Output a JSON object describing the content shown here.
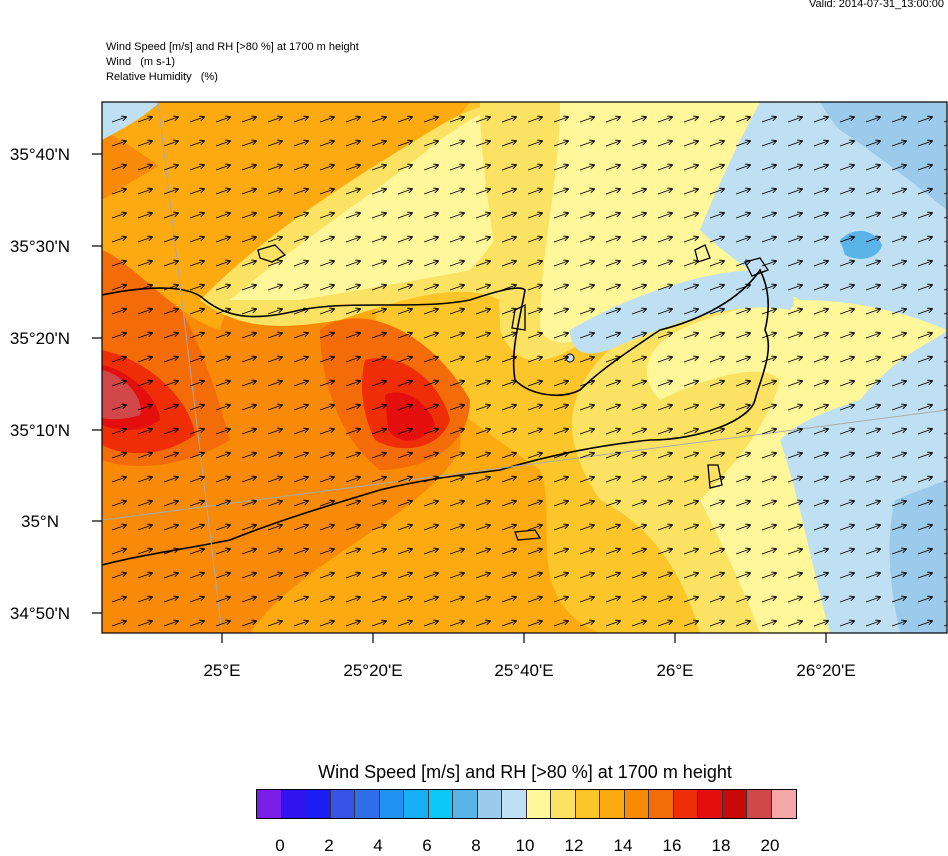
{
  "valid": "Valid: 2014-07-31_13:00:00",
  "header": {
    "line1": "Wind Speed [m/s] and RH [>80 %] at 1700 m height",
    "line2": "Wind   (m s-1)",
    "line3": "Relative Humidity   (%)"
  },
  "axes": {
    "lat_labels": [
      "35°40'N",
      "35°30'N",
      "35°20'N",
      "35°10'N",
      "35°N",
      "34°50'N"
    ],
    "lon_labels": [
      "25°E",
      "25°20'E",
      "25°40'E",
      "26°E",
      "26°20'E"
    ]
  },
  "colorbar": {
    "title": "Wind Speed [m/s] and RH [>80 %] at 1700 m height",
    "colors": [
      "#7a1ee8",
      "#3114ee",
      "#1a1ef5",
      "#3754e6",
      "#2f70ea",
      "#2192f2",
      "#18aef5",
      "#0cc8f8",
      "#5ab4e8",
      "#9ccaea",
      "#bfe0f2",
      "#fff79a",
      "#fbe263",
      "#fcc529",
      "#fcaa10",
      "#f88a08",
      "#f46c08",
      "#ef2e08",
      "#e40e0e",
      "#c80a0a",
      "#d24848",
      "#f4a8a8"
    ],
    "labels": [
      "0",
      "2",
      "4",
      "6",
      "8",
      "10",
      "12",
      "14",
      "16",
      "18",
      "20"
    ]
  },
  "map": {
    "region": "Crete",
    "wind_direction": "southwest to northeast (arrows pointing NE)",
    "max_speed_areas": [
      "west of island (~20 m/s)",
      "central Crete (~18 m/s)"
    ],
    "min_speed_area": "north-east sea (~8 m/s)"
  }
}
